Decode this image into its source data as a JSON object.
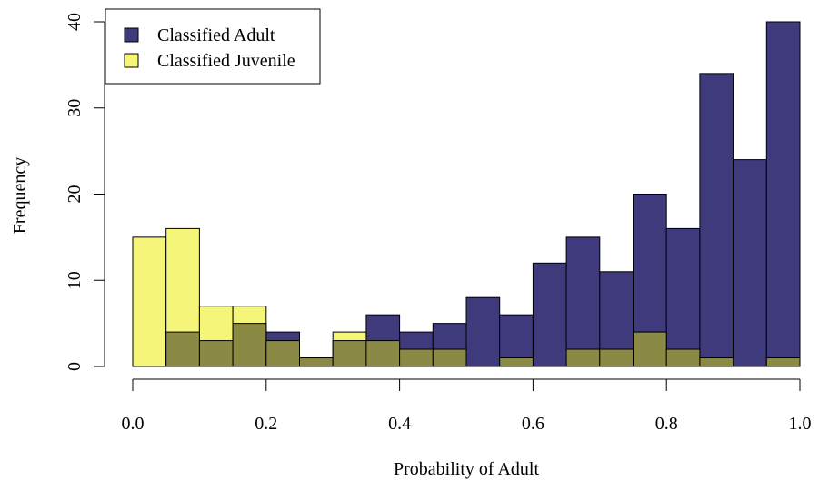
{
  "chart_data": {
    "type": "bar",
    "subtype": "overlaid-histogram",
    "title": "",
    "xlabel": "Probability of Adult",
    "ylabel": "Frequency",
    "xlim": [
      0,
      1
    ],
    "ylim": [
      0,
      40
    ],
    "x_ticks": [
      "0.0",
      "0.2",
      "0.4",
      "0.6",
      "0.8",
      "1.0"
    ],
    "y_ticks": [
      "0",
      "10",
      "20",
      "30",
      "40"
    ],
    "x_tick_values": [
      0,
      0.2,
      0.4,
      0.6,
      0.8,
      1.0
    ],
    "y_tick_values": [
      0,
      10,
      20,
      30,
      40
    ],
    "bin_width": 0.05,
    "bin_starts": [
      0,
      0.05,
      0.1,
      0.15,
      0.2,
      0.25,
      0.3,
      0.35,
      0.4,
      0.45,
      0.5,
      0.55,
      0.6,
      0.65,
      0.7,
      0.75,
      0.8,
      0.85,
      0.9,
      0.95
    ],
    "grid": false,
    "legend_position": "top-left",
    "overlap_color": "#8a8a45",
    "series": [
      {
        "name": "Classified Adult",
        "color": "#3f3a7c",
        "values": [
          0,
          4,
          3,
          5,
          4,
          1,
          3,
          6,
          4,
          5,
          8,
          6,
          12,
          15,
          11,
          20,
          16,
          34,
          24,
          40
        ]
      },
      {
        "name": "Classified Juvenile",
        "color": "#f5f57a",
        "values": [
          15,
          16,
          7,
          7,
          3,
          1,
          4,
          3,
          2,
          2,
          0,
          1,
          0,
          2,
          2,
          4,
          2,
          1,
          0,
          1
        ]
      }
    ]
  }
}
